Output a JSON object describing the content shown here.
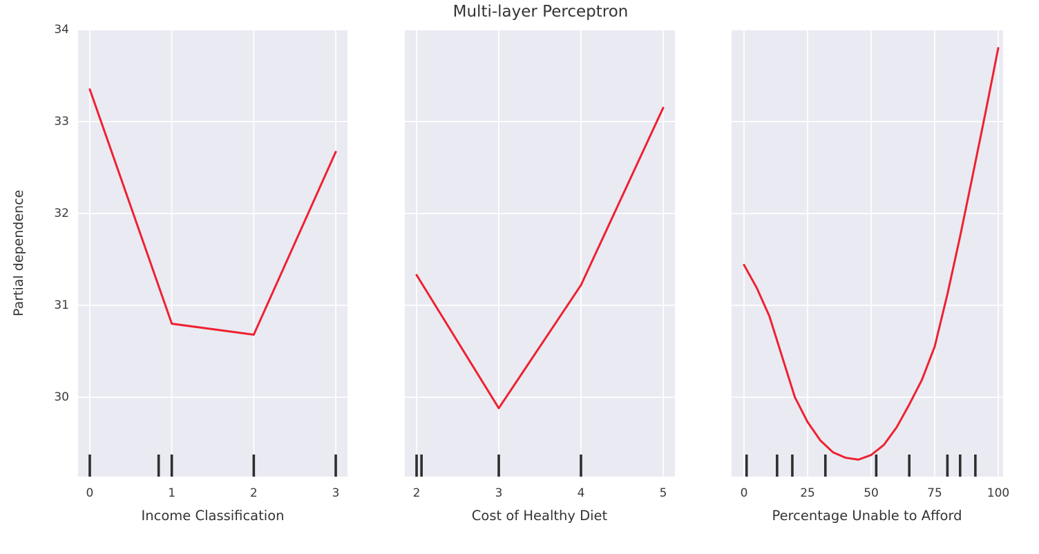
{
  "title": "Multi-layer Perceptron",
  "ylabel": "Partial dependence",
  "colors": {
    "line": "#ee2130",
    "panel_bg": "#eaeaf2",
    "grid": "#ffffff",
    "rug": "#2e2e2e",
    "text": "#343434"
  },
  "chart_data": [
    {
      "type": "line",
      "title": "Multi-layer Perceptron",
      "xlabel": "Income Classification",
      "ylabel": "Partial dependence",
      "x": [
        0,
        1,
        2,
        3
      ],
      "y": [
        33.35,
        30.8,
        30.68,
        32.67
      ],
      "rug_x": [
        0,
        0.84,
        1.0,
        2.0,
        3.0
      ],
      "xticks": [
        0,
        1,
        2,
        3
      ],
      "yticks": [
        34,
        33,
        32,
        31,
        30
      ],
      "xlim": [
        -0.143,
        3.143
      ],
      "ylim": [
        29.135,
        34
      ],
      "grid": true,
      "legend": false
    },
    {
      "type": "line",
      "xlabel": "Cost of Healthy Diet",
      "ylabel": "Partial dependence",
      "x": [
        2,
        3,
        4,
        5
      ],
      "y": [
        31.33,
        29.88,
        31.22,
        33.15
      ],
      "rug_x": [
        2.0,
        2.06,
        3.0,
        4.0
      ],
      "xticks": [
        2,
        3,
        4,
        5
      ],
      "yticks": [
        34,
        33,
        32,
        31,
        30
      ],
      "xlim": [
        1.857,
        5.143
      ],
      "ylim": [
        29.135,
        34
      ],
      "grid": true,
      "legend": false
    },
    {
      "type": "line",
      "xlabel": "Percentage Unable to Afford",
      "ylabel": "Partial dependence",
      "x": [
        0,
        5,
        10,
        15,
        20,
        25,
        30,
        35,
        40,
        45,
        50,
        55,
        60,
        65,
        70,
        75,
        80,
        85,
        90,
        95,
        100
      ],
      "y": [
        31.44,
        31.19,
        30.88,
        30.44,
        30.0,
        29.73,
        29.53,
        29.4,
        29.34,
        29.32,
        29.37,
        29.48,
        29.67,
        29.92,
        30.19,
        30.55,
        31.12,
        31.75,
        32.42,
        33.1,
        33.8
      ],
      "rug_x": [
        1,
        13,
        19,
        32,
        52,
        65,
        80,
        85,
        91
      ],
      "xticks": [
        0,
        25,
        50,
        75,
        100
      ],
      "yticks": [
        34,
        33,
        32,
        31,
        30
      ],
      "xlim": [
        -4.9,
        101.9
      ],
      "ylim": [
        29.135,
        34
      ],
      "grid": true,
      "legend": false
    }
  ]
}
